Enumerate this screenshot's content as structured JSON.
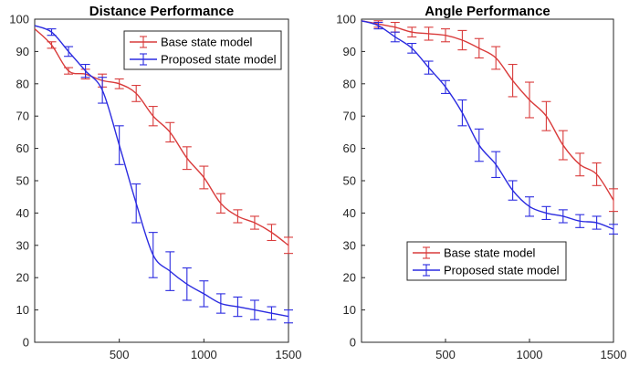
{
  "chart_data": [
    {
      "type": "line",
      "title": "Distance Performance",
      "xlim": [
        0,
        1500
      ],
      "ylim": [
        0,
        100
      ],
      "xticks": [
        500,
        1000,
        1500
      ],
      "yticks": [
        0,
        10,
        20,
        30,
        40,
        50,
        60,
        70,
        80,
        90,
        100
      ],
      "grid": false,
      "legend_position": "top-right",
      "x": [
        0,
        100,
        200,
        300,
        400,
        500,
        600,
        700,
        800,
        900,
        1000,
        1100,
        1200,
        1300,
        1400,
        1500
      ],
      "series": [
        {
          "name": "Base state model",
          "color": "#d93b3b",
          "values": [
            97,
            92,
            84,
            83,
            81,
            80,
            77,
            70,
            65,
            57,
            51,
            43,
            39,
            37,
            34,
            30
          ],
          "errors": [
            0,
            1,
            1,
            1.5,
            2,
            1.5,
            2.5,
            3,
            3,
            3.5,
            3.5,
            3,
            2,
            2,
            2.5,
            2.5
          ],
          "error_x": [
            100,
            200,
            300,
            400,
            500,
            600,
            700,
            800,
            900,
            1000,
            1100,
            1200,
            1300,
            1400,
            1500
          ]
        },
        {
          "name": "Proposed state model",
          "color": "#2b2be0",
          "values": [
            98,
            96,
            90,
            84,
            78,
            61,
            43,
            27,
            22,
            18,
            15,
            12,
            11,
            10,
            9,
            8
          ],
          "errors": [
            0,
            1,
            1.5,
            2,
            4,
            6,
            6,
            7,
            6,
            5,
            4,
            3,
            3,
            3,
            2,
            2
          ],
          "error_x": [
            100,
            200,
            300,
            400,
            500,
            600,
            700,
            800,
            900,
            1000,
            1100,
            1200,
            1300,
            1400,
            1500
          ]
        }
      ]
    },
    {
      "type": "line",
      "title": "Angle Performance",
      "xlim": [
        0,
        1500
      ],
      "ylim": [
        0,
        100
      ],
      "xticks": [
        500,
        1000,
        1500
      ],
      "yticks": [
        0,
        10,
        20,
        30,
        40,
        50,
        60,
        70,
        80,
        90,
        100
      ],
      "grid": false,
      "legend_position": "bottom-center",
      "x": [
        0,
        100,
        200,
        300,
        400,
        500,
        600,
        700,
        800,
        900,
        1000,
        1100,
        1200,
        1300,
        1400,
        1500
      ],
      "series": [
        {
          "name": "Base state model",
          "color": "#d93b3b",
          "values": [
            99.5,
            98.5,
            97.5,
            96,
            95.5,
            95,
            93.5,
            91,
            88,
            81,
            75,
            70,
            61,
            55,
            52,
            44
          ],
          "errors": [
            0,
            1,
            1.5,
            1.5,
            2,
            2,
            3,
            3,
            3.5,
            5,
            5.5,
            4.5,
            4.5,
            3.5,
            3.5,
            3.5
          ],
          "error_x": [
            100,
            200,
            300,
            400,
            500,
            600,
            700,
            800,
            900,
            1000,
            1100,
            1200,
            1300,
            1400,
            1500
          ]
        },
        {
          "name": "Proposed state model",
          "color": "#2b2be0",
          "values": [
            99.5,
            98,
            94.5,
            91,
            85,
            79,
            71,
            61,
            55,
            47,
            42,
            40,
            39,
            37.5,
            37,
            35
          ],
          "errors": [
            0,
            1,
            1.5,
            1.5,
            2,
            2,
            4,
            5,
            4,
            3,
            3,
            2,
            2,
            2,
            2,
            1.5
          ],
          "error_x": [
            100,
            200,
            300,
            400,
            500,
            600,
            700,
            800,
            900,
            1000,
            1100,
            1200,
            1300,
            1400,
            1500
          ]
        }
      ]
    }
  ]
}
